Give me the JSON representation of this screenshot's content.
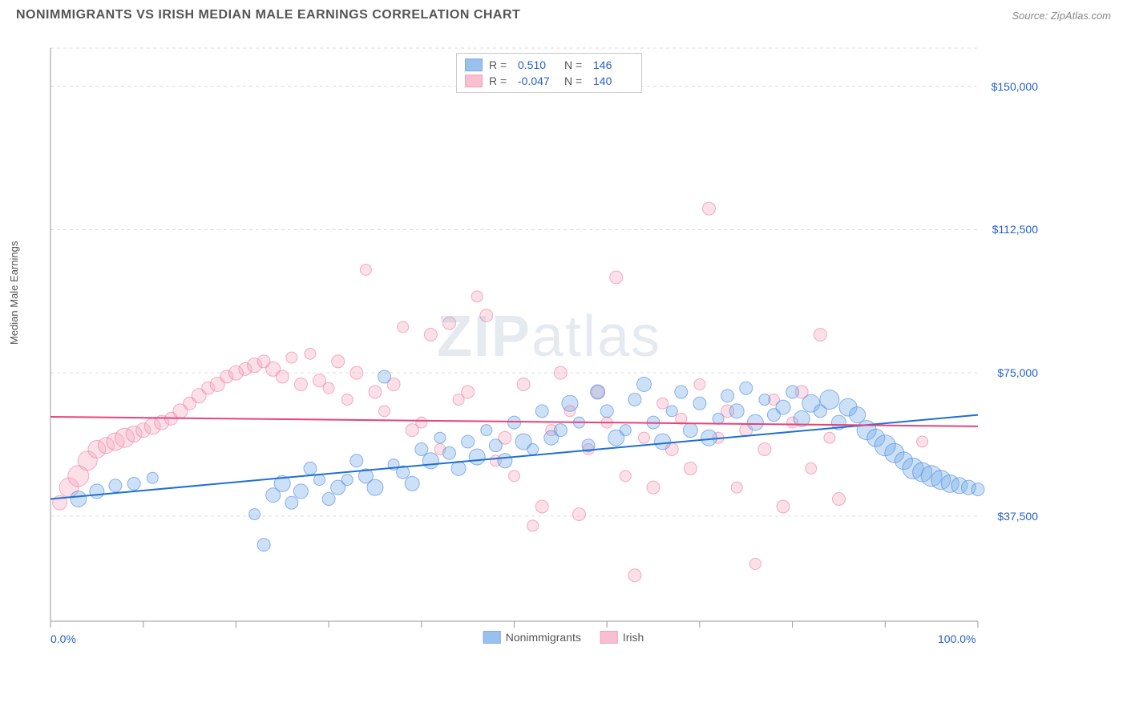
{
  "header": {
    "title": "NONIMMIGRANTS VS IRISH MEDIAN MALE EARNINGS CORRELATION CHART",
    "source": "Source: ZipAtlas.com"
  },
  "chart": {
    "type": "scatter",
    "y_axis_label": "Median Male Earnings",
    "background_color": "#ffffff",
    "grid_color": "#dddddd",
    "axis_line_color": "#999999",
    "x_range": [
      0,
      100
    ],
    "y_range": [
      10000,
      160000
    ],
    "x_ticks": [
      0,
      10,
      20,
      30,
      40,
      50,
      60,
      70,
      80,
      90,
      100
    ],
    "x_tick_labels": {
      "0": "0.0%",
      "100": "100.0%"
    },
    "y_ticks": [
      37500,
      75000,
      112500,
      150000
    ],
    "y_tick_labels": {
      "37500": "$37,500",
      "75000": "$75,000",
      "112500": "$112,500",
      "150000": "$150,000"
    },
    "y_tick_label_color": "#2660c4",
    "x_tick_label_color": "#2660c4",
    "watermark": {
      "text_bold": "ZIP",
      "text_light": "atlas"
    },
    "marker_radius_min": 6,
    "marker_radius_max": 13,
    "marker_fill_opacity": 0.35,
    "marker_stroke_width": 1
  },
  "series": [
    {
      "name": "Nonimmigrants",
      "color_fill": "#6ea8e8",
      "color_stroke": "#4a86d8",
      "trend_line_color": "#1f6fd4",
      "r_value": "0.510",
      "n_value": "146",
      "trend": {
        "y_at_xmin": 42000,
        "y_at_xmax": 64000
      },
      "points": [
        [
          3,
          42000,
          10
        ],
        [
          5,
          44000,
          9
        ],
        [
          7,
          45500,
          8
        ],
        [
          9,
          46000,
          8
        ],
        [
          11,
          47500,
          7
        ],
        [
          22,
          38000,
          7
        ],
        [
          23,
          30000,
          8
        ],
        [
          24,
          43000,
          9
        ],
        [
          25,
          46000,
          10
        ],
        [
          26,
          41000,
          8
        ],
        [
          27,
          44000,
          9
        ],
        [
          28,
          50000,
          8
        ],
        [
          29,
          47000,
          7
        ],
        [
          30,
          42000,
          8
        ],
        [
          31,
          45000,
          9
        ],
        [
          32,
          47000,
          7
        ],
        [
          33,
          52000,
          8
        ],
        [
          34,
          48000,
          9
        ],
        [
          35,
          45000,
          10
        ],
        [
          36,
          74000,
          8
        ],
        [
          37,
          51000,
          7
        ],
        [
          38,
          49000,
          8
        ],
        [
          39,
          46000,
          9
        ],
        [
          40,
          55000,
          8
        ],
        [
          41,
          52000,
          10
        ],
        [
          42,
          58000,
          7
        ],
        [
          43,
          54000,
          8
        ],
        [
          44,
          50000,
          9
        ],
        [
          45,
          57000,
          8
        ],
        [
          46,
          53000,
          10
        ],
        [
          47,
          60000,
          7
        ],
        [
          48,
          56000,
          8
        ],
        [
          49,
          52000,
          9
        ],
        [
          50,
          62000,
          8
        ],
        [
          51,
          57000,
          10
        ],
        [
          52,
          55000,
          7
        ],
        [
          53,
          65000,
          8
        ],
        [
          54,
          58000,
          9
        ],
        [
          55,
          60000,
          8
        ],
        [
          56,
          67000,
          10
        ],
        [
          57,
          62000,
          7
        ],
        [
          58,
          56000,
          8
        ],
        [
          59,
          70000,
          9
        ],
        [
          60,
          65000,
          8
        ],
        [
          61,
          58000,
          10
        ],
        [
          62,
          60000,
          7
        ],
        [
          63,
          68000,
          8
        ],
        [
          64,
          72000,
          9
        ],
        [
          65,
          62000,
          8
        ],
        [
          66,
          57000,
          10
        ],
        [
          67,
          65000,
          7
        ],
        [
          68,
          70000,
          8
        ],
        [
          69,
          60000,
          9
        ],
        [
          70,
          67000,
          8
        ],
        [
          71,
          58000,
          10
        ],
        [
          72,
          63000,
          7
        ],
        [
          73,
          69000,
          8
        ],
        [
          74,
          65000,
          9
        ],
        [
          75,
          71000,
          8
        ],
        [
          76,
          62000,
          10
        ],
        [
          77,
          68000,
          7
        ],
        [
          78,
          64000,
          8
        ],
        [
          79,
          66000,
          9
        ],
        [
          80,
          70000,
          8
        ],
        [
          81,
          63000,
          10
        ],
        [
          82,
          67000,
          11
        ],
        [
          83,
          65000,
          8
        ],
        [
          84,
          68000,
          12
        ],
        [
          85,
          62000,
          9
        ],
        [
          86,
          66000,
          11
        ],
        [
          87,
          64000,
          10
        ],
        [
          88,
          60000,
          12
        ],
        [
          89,
          58000,
          11
        ],
        [
          90,
          56000,
          13
        ],
        [
          91,
          54000,
          12
        ],
        [
          92,
          52000,
          11
        ],
        [
          93,
          50000,
          13
        ],
        [
          94,
          49000,
          12
        ],
        [
          95,
          48000,
          13
        ],
        [
          96,
          47000,
          12
        ],
        [
          97,
          46000,
          11
        ],
        [
          98,
          45500,
          10
        ],
        [
          99,
          45000,
          9
        ],
        [
          100,
          44500,
          8
        ]
      ]
    },
    {
      "name": "Irish",
      "color_fill": "#f4a5bd",
      "color_stroke": "#ec7ba0",
      "trend_line_color": "#e8437b",
      "r_value": "-0.047",
      "n_value": "140",
      "trend": {
        "y_at_xmin": 63500,
        "y_at_xmax": 61000
      },
      "points": [
        [
          1,
          41000,
          9
        ],
        [
          2,
          45000,
          12
        ],
        [
          3,
          48000,
          13
        ],
        [
          4,
          52000,
          12
        ],
        [
          5,
          55000,
          11
        ],
        [
          6,
          56000,
          10
        ],
        [
          7,
          57000,
          11
        ],
        [
          8,
          58000,
          12
        ],
        [
          9,
          59000,
          10
        ],
        [
          10,
          60000,
          9
        ],
        [
          11,
          61000,
          10
        ],
        [
          12,
          62000,
          9
        ],
        [
          13,
          63000,
          8
        ],
        [
          14,
          65000,
          9
        ],
        [
          15,
          67000,
          8
        ],
        [
          16,
          69000,
          9
        ],
        [
          17,
          71000,
          8
        ],
        [
          18,
          72000,
          9
        ],
        [
          19,
          74000,
          8
        ],
        [
          20,
          75000,
          9
        ],
        [
          21,
          76000,
          8
        ],
        [
          22,
          77000,
          9
        ],
        [
          23,
          78000,
          8
        ],
        [
          24,
          76000,
          9
        ],
        [
          25,
          74000,
          8
        ],
        [
          26,
          79000,
          7
        ],
        [
          27,
          72000,
          8
        ],
        [
          28,
          80000,
          7
        ],
        [
          29,
          73000,
          8
        ],
        [
          30,
          71000,
          7
        ],
        [
          31,
          78000,
          8
        ],
        [
          32,
          68000,
          7
        ],
        [
          33,
          75000,
          8
        ],
        [
          34,
          102000,
          7
        ],
        [
          35,
          70000,
          8
        ],
        [
          36,
          65000,
          7
        ],
        [
          37,
          72000,
          8
        ],
        [
          38,
          87000,
          7
        ],
        [
          39,
          60000,
          8
        ],
        [
          40,
          62000,
          7
        ],
        [
          41,
          85000,
          8
        ],
        [
          42,
          55000,
          7
        ],
        [
          43,
          88000,
          8
        ],
        [
          44,
          68000,
          7
        ],
        [
          45,
          70000,
          8
        ],
        [
          46,
          95000,
          7
        ],
        [
          47,
          90000,
          8
        ],
        [
          48,
          52000,
          7
        ],
        [
          49,
          58000,
          8
        ],
        [
          50,
          48000,
          7
        ],
        [
          51,
          72000,
          8
        ],
        [
          52,
          35000,
          7
        ],
        [
          53,
          40000,
          8
        ],
        [
          54,
          60000,
          7
        ],
        [
          55,
          75000,
          8
        ],
        [
          56,
          65000,
          7
        ],
        [
          57,
          38000,
          8
        ],
        [
          58,
          55000,
          7
        ],
        [
          59,
          70000,
          8
        ],
        [
          60,
          62000,
          7
        ],
        [
          61,
          100000,
          8
        ],
        [
          62,
          48000,
          7
        ],
        [
          63,
          22000,
          8
        ],
        [
          64,
          58000,
          7
        ],
        [
          65,
          45000,
          8
        ],
        [
          66,
          67000,
          7
        ],
        [
          67,
          55000,
          8
        ],
        [
          68,
          63000,
          7
        ],
        [
          69,
          50000,
          8
        ],
        [
          70,
          72000,
          7
        ],
        [
          71,
          118000,
          8
        ],
        [
          72,
          58000,
          7
        ],
        [
          73,
          65000,
          8
        ],
        [
          74,
          45000,
          7
        ],
        [
          75,
          60000,
          8
        ],
        [
          76,
          25000,
          7
        ],
        [
          77,
          55000,
          8
        ],
        [
          78,
          68000,
          7
        ],
        [
          79,
          40000,
          8
        ],
        [
          80,
          62000,
          7
        ],
        [
          81,
          70000,
          8
        ],
        [
          82,
          50000,
          7
        ],
        [
          83,
          85000,
          8
        ],
        [
          84,
          58000,
          7
        ],
        [
          85,
          42000,
          8
        ],
        [
          94,
          57000,
          7
        ]
      ]
    }
  ],
  "legend_top": {
    "r_label": "R =",
    "n_label": "N ="
  },
  "legend_bottom": {
    "items": [
      "Nonimmigrants",
      "Irish"
    ]
  }
}
